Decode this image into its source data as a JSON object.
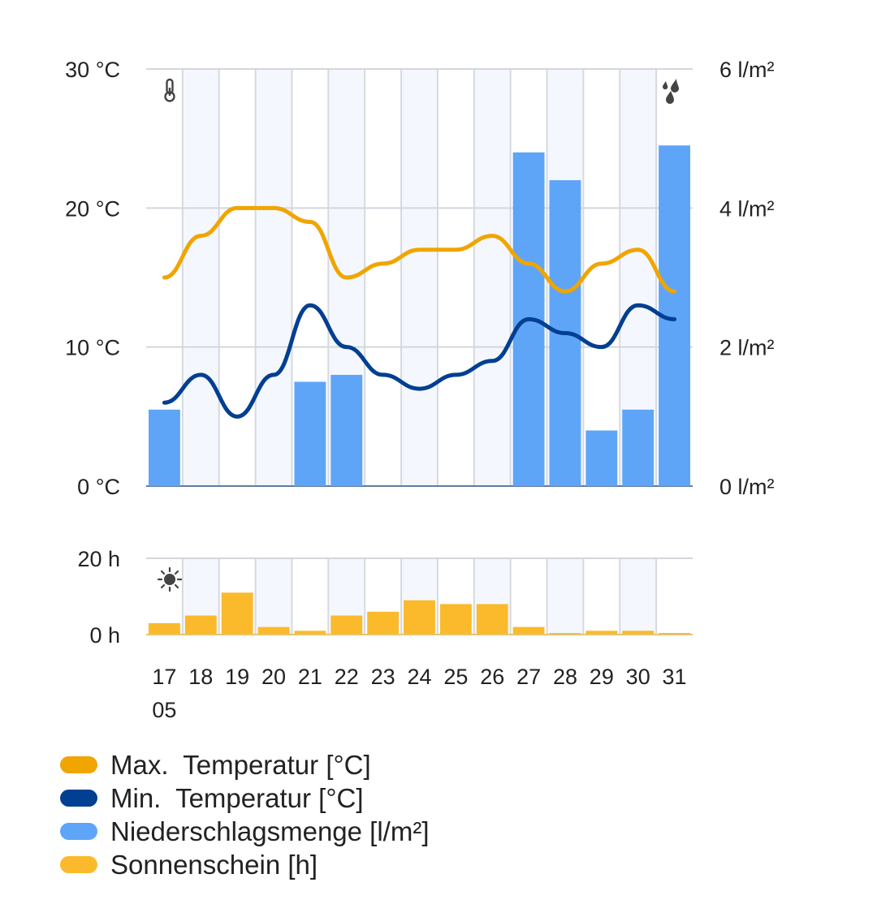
{
  "chart_data": {
    "type": "bar+line",
    "categories": [
      "17",
      "18",
      "19",
      "20",
      "21",
      "22",
      "23",
      "24",
      "25",
      "26",
      "27",
      "28",
      "29",
      "30",
      "31"
    ],
    "month_label": "05",
    "temperature_axis": {
      "ticks": [
        "0 °C",
        "10 °C",
        "20 °C",
        "30 °C"
      ],
      "range": [
        0,
        30
      ]
    },
    "precipitation_axis": {
      "ticks": [
        "0 l/m²",
        "2 l/m²",
        "4 l/m²",
        "6 l/m²"
      ],
      "range": [
        0,
        6
      ]
    },
    "sunshine_axis": {
      "ticks": [
        "0 h",
        "20 h"
      ],
      "range": [
        0,
        20
      ]
    },
    "series": [
      {
        "name": "Max.  Temperatur [°C]",
        "type": "line",
        "axis": "temperature",
        "color": "#f0a500",
        "values": [
          15,
          18,
          20,
          20,
          19,
          15,
          16,
          17,
          17,
          18,
          16,
          14,
          16,
          17,
          14
        ]
      },
      {
        "name": "Min.  Temperatur [°C]",
        "type": "line",
        "axis": "temperature",
        "color": "#003f91",
        "values": [
          6,
          8,
          5,
          8,
          13,
          10,
          8,
          7,
          8,
          9,
          12,
          11,
          10,
          13,
          12
        ]
      },
      {
        "name": "Niederschlagsmenge [l/m²]",
        "type": "bar",
        "axis": "precipitation",
        "color": "#5ea5f8",
        "values": [
          1.1,
          0,
          0,
          0,
          1.5,
          1.6,
          0,
          0,
          0,
          0,
          4.8,
          4.4,
          0.8,
          1.1,
          4.9
        ]
      },
      {
        "name": "Sonnenschein [h]",
        "type": "bar",
        "axis": "sunshine",
        "color": "#fbba2b",
        "values": [
          3,
          5,
          11,
          2,
          1,
          5,
          6,
          9,
          8,
          8,
          2,
          0,
          1,
          1,
          0
        ]
      }
    ],
    "icons": [
      "thermometer-icon",
      "raindrops-icon",
      "sun-icon"
    ],
    "grid": true,
    "legend_position": "bottom-left"
  }
}
